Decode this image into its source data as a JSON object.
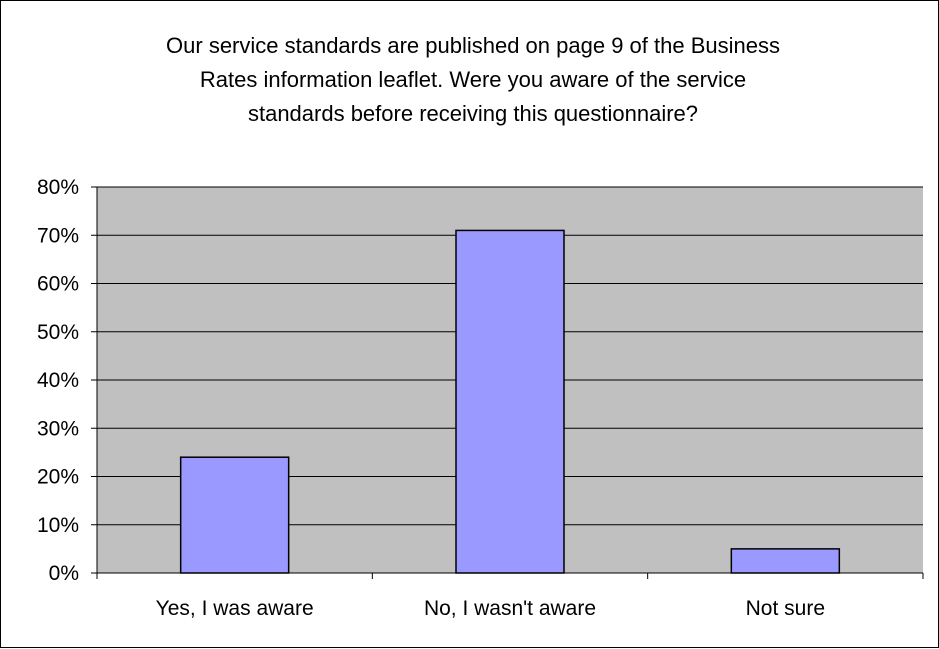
{
  "chart_data": {
    "type": "bar",
    "title_lines": [
      "Our service standards are published on page 9 of the Business",
      "Rates information leaflet.  Were you aware of the service",
      "standards before receiving this questionnaire?"
    ],
    "categories": [
      "Yes, I was aware",
      "No, I wasn't aware",
      "Not sure"
    ],
    "values": [
      24,
      71,
      5
    ],
    "value_unit": "percent",
    "ylim": [
      0,
      80
    ],
    "y_ticks": [
      {
        "value": 0,
        "label": "0%"
      },
      {
        "value": 10,
        "label": "10%"
      },
      {
        "value": 20,
        "label": "20%"
      },
      {
        "value": 30,
        "label": "30%"
      },
      {
        "value": 40,
        "label": "40%"
      },
      {
        "value": 50,
        "label": "50%"
      },
      {
        "value": 60,
        "label": "60%"
      },
      {
        "value": 70,
        "label": "70%"
      },
      {
        "value": 80,
        "label": "80%"
      }
    ],
    "grid": true,
    "legend": "none",
    "colors": {
      "bar_fill": "#9999FF",
      "bar_stroke": "#000000",
      "plot_background": "#C0C0C0",
      "gridline": "#000000"
    }
  }
}
